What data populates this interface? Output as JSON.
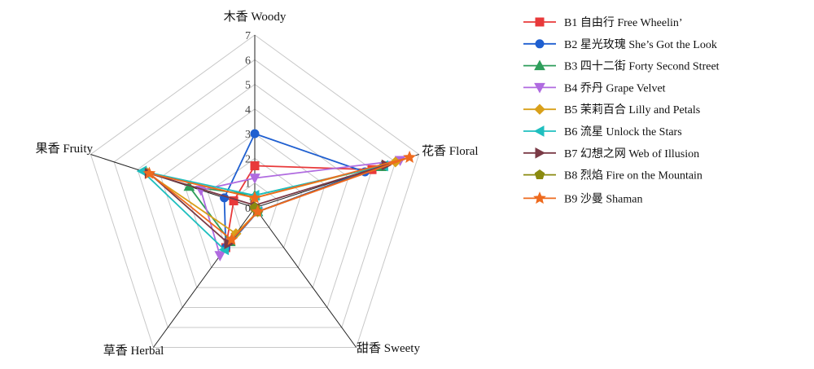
{
  "chart_data": {
    "type": "radar",
    "axes": [
      "木香 Woody",
      "花香 Floral",
      "甜香 Sweety",
      "草香 Herbal",
      "果香 Fruity"
    ],
    "range": [
      0,
      7
    ],
    "ticks": [
      "0",
      "1",
      "2",
      "3",
      "4",
      "5",
      "6",
      "7"
    ],
    "grid": true,
    "legend_position": "right",
    "series": [
      {
        "name": "B1 自由行 Free Wheelin’",
        "marker": "square",
        "color": "#e8393a",
        "values": [
          1.7,
          5.0,
          0.2,
          2.0,
          0.9
        ]
      },
      {
        "name": "B2 星光玫瑰 She’s Got the Look",
        "marker": "circle",
        "color": "#1f5fd0",
        "values": [
          3.0,
          4.7,
          0.2,
          2.0,
          1.3
        ]
      },
      {
        "name": "B3 四十二街 Forty Second Street",
        "marker": "triangle-up",
        "color": "#2e9e5b",
        "values": [
          0.5,
          5.4,
          0.2,
          1.7,
          2.8
        ]
      },
      {
        "name": "B4 乔丹 Grape Velvet",
        "marker": "triangle-down",
        "color": "#b06be0",
        "values": [
          1.2,
          6.2,
          0.2,
          2.4,
          2.3
        ]
      },
      {
        "name": "B5 茉莉百合 Lilly and Petals",
        "marker": "diamond",
        "color": "#d9a01a",
        "values": [
          0.4,
          6.0,
          0.2,
          1.3,
          4.6
        ]
      },
      {
        "name": "B6 流星 Unlock the Stars",
        "marker": "triangle-left",
        "color": "#1fbfbf",
        "values": [
          0.5,
          5.5,
          0.2,
          2.1,
          4.8
        ]
      },
      {
        "name": "B7 幻想之网 Web of Illusion",
        "marker": "triangle-right",
        "color": "#7a3a46",
        "values": [
          0.1,
          5.6,
          0.2,
          1.8,
          4.5
        ]
      },
      {
        "name": "B8 烈焰 Fire on the Mountain",
        "marker": "pentagon",
        "color": "#8a8a10",
        "values": [
          0.0,
          0.0,
          0.2,
          0.0,
          0.0
        ]
      },
      {
        "name": "B9 沙曼 Shaman",
        "marker": "star",
        "color": "#ee6a1e",
        "values": [
          0.4,
          6.6,
          0.2,
          1.6,
          4.5
        ]
      }
    ]
  }
}
